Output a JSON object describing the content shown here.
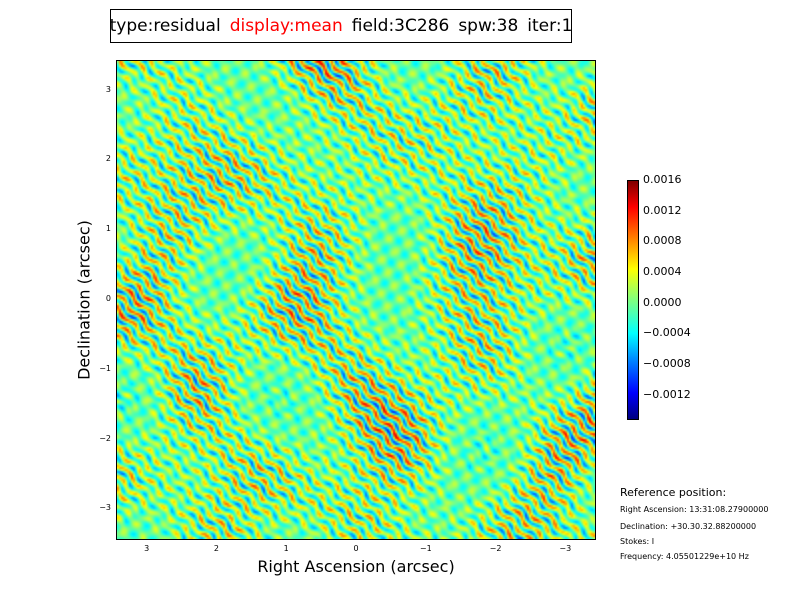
{
  "title": {
    "type": "type:residual",
    "display": "display:mean",
    "field": "field:3C286",
    "spw": "spw:38",
    "iter": "iter:1",
    "display_color": "#ff0000"
  },
  "chart_data": {
    "type": "heatmap",
    "xlabel": "Right Ascension (arcsec)",
    "ylabel": "Declination (arcsec)",
    "xlim": [
      3.44,
      -3.44
    ],
    "ylim": [
      -3.44,
      3.44
    ],
    "xticks": [
      "3",
      "2",
      "1",
      "0",
      "−1",
      "−2",
      "−3"
    ],
    "xtick_values": [
      3,
      2,
      1,
      0,
      -1,
      -2,
      -3
    ],
    "yticks": [
      "3",
      "2",
      "1",
      "0",
      "−1",
      "−2",
      "−3"
    ],
    "ytick_values": [
      3,
      2,
      1,
      0,
      -1,
      -2,
      -3
    ],
    "colormap": "jet",
    "clim": [
      -0.00153,
      0.0016
    ],
    "colorbar_ticks": [
      "0.0016",
      "0.0012",
      "0.0008",
      "0.0004",
      "0.0000",
      "−0.0004",
      "−0.0008",
      "−0.0012"
    ],
    "colorbar_tick_values": [
      0.0016,
      0.0012,
      0.0008,
      0.0004,
      0,
      -0.0004,
      -0.0008,
      -0.0012
    ]
  },
  "reference": {
    "heading": "Reference position:",
    "ra": "Right Ascension: 13:31:08.27900000",
    "dec": "Declination: +30.30.32.88200000",
    "stokes": "Stokes: I",
    "freq": "Frequency: 4.05501229e+10 Hz"
  }
}
